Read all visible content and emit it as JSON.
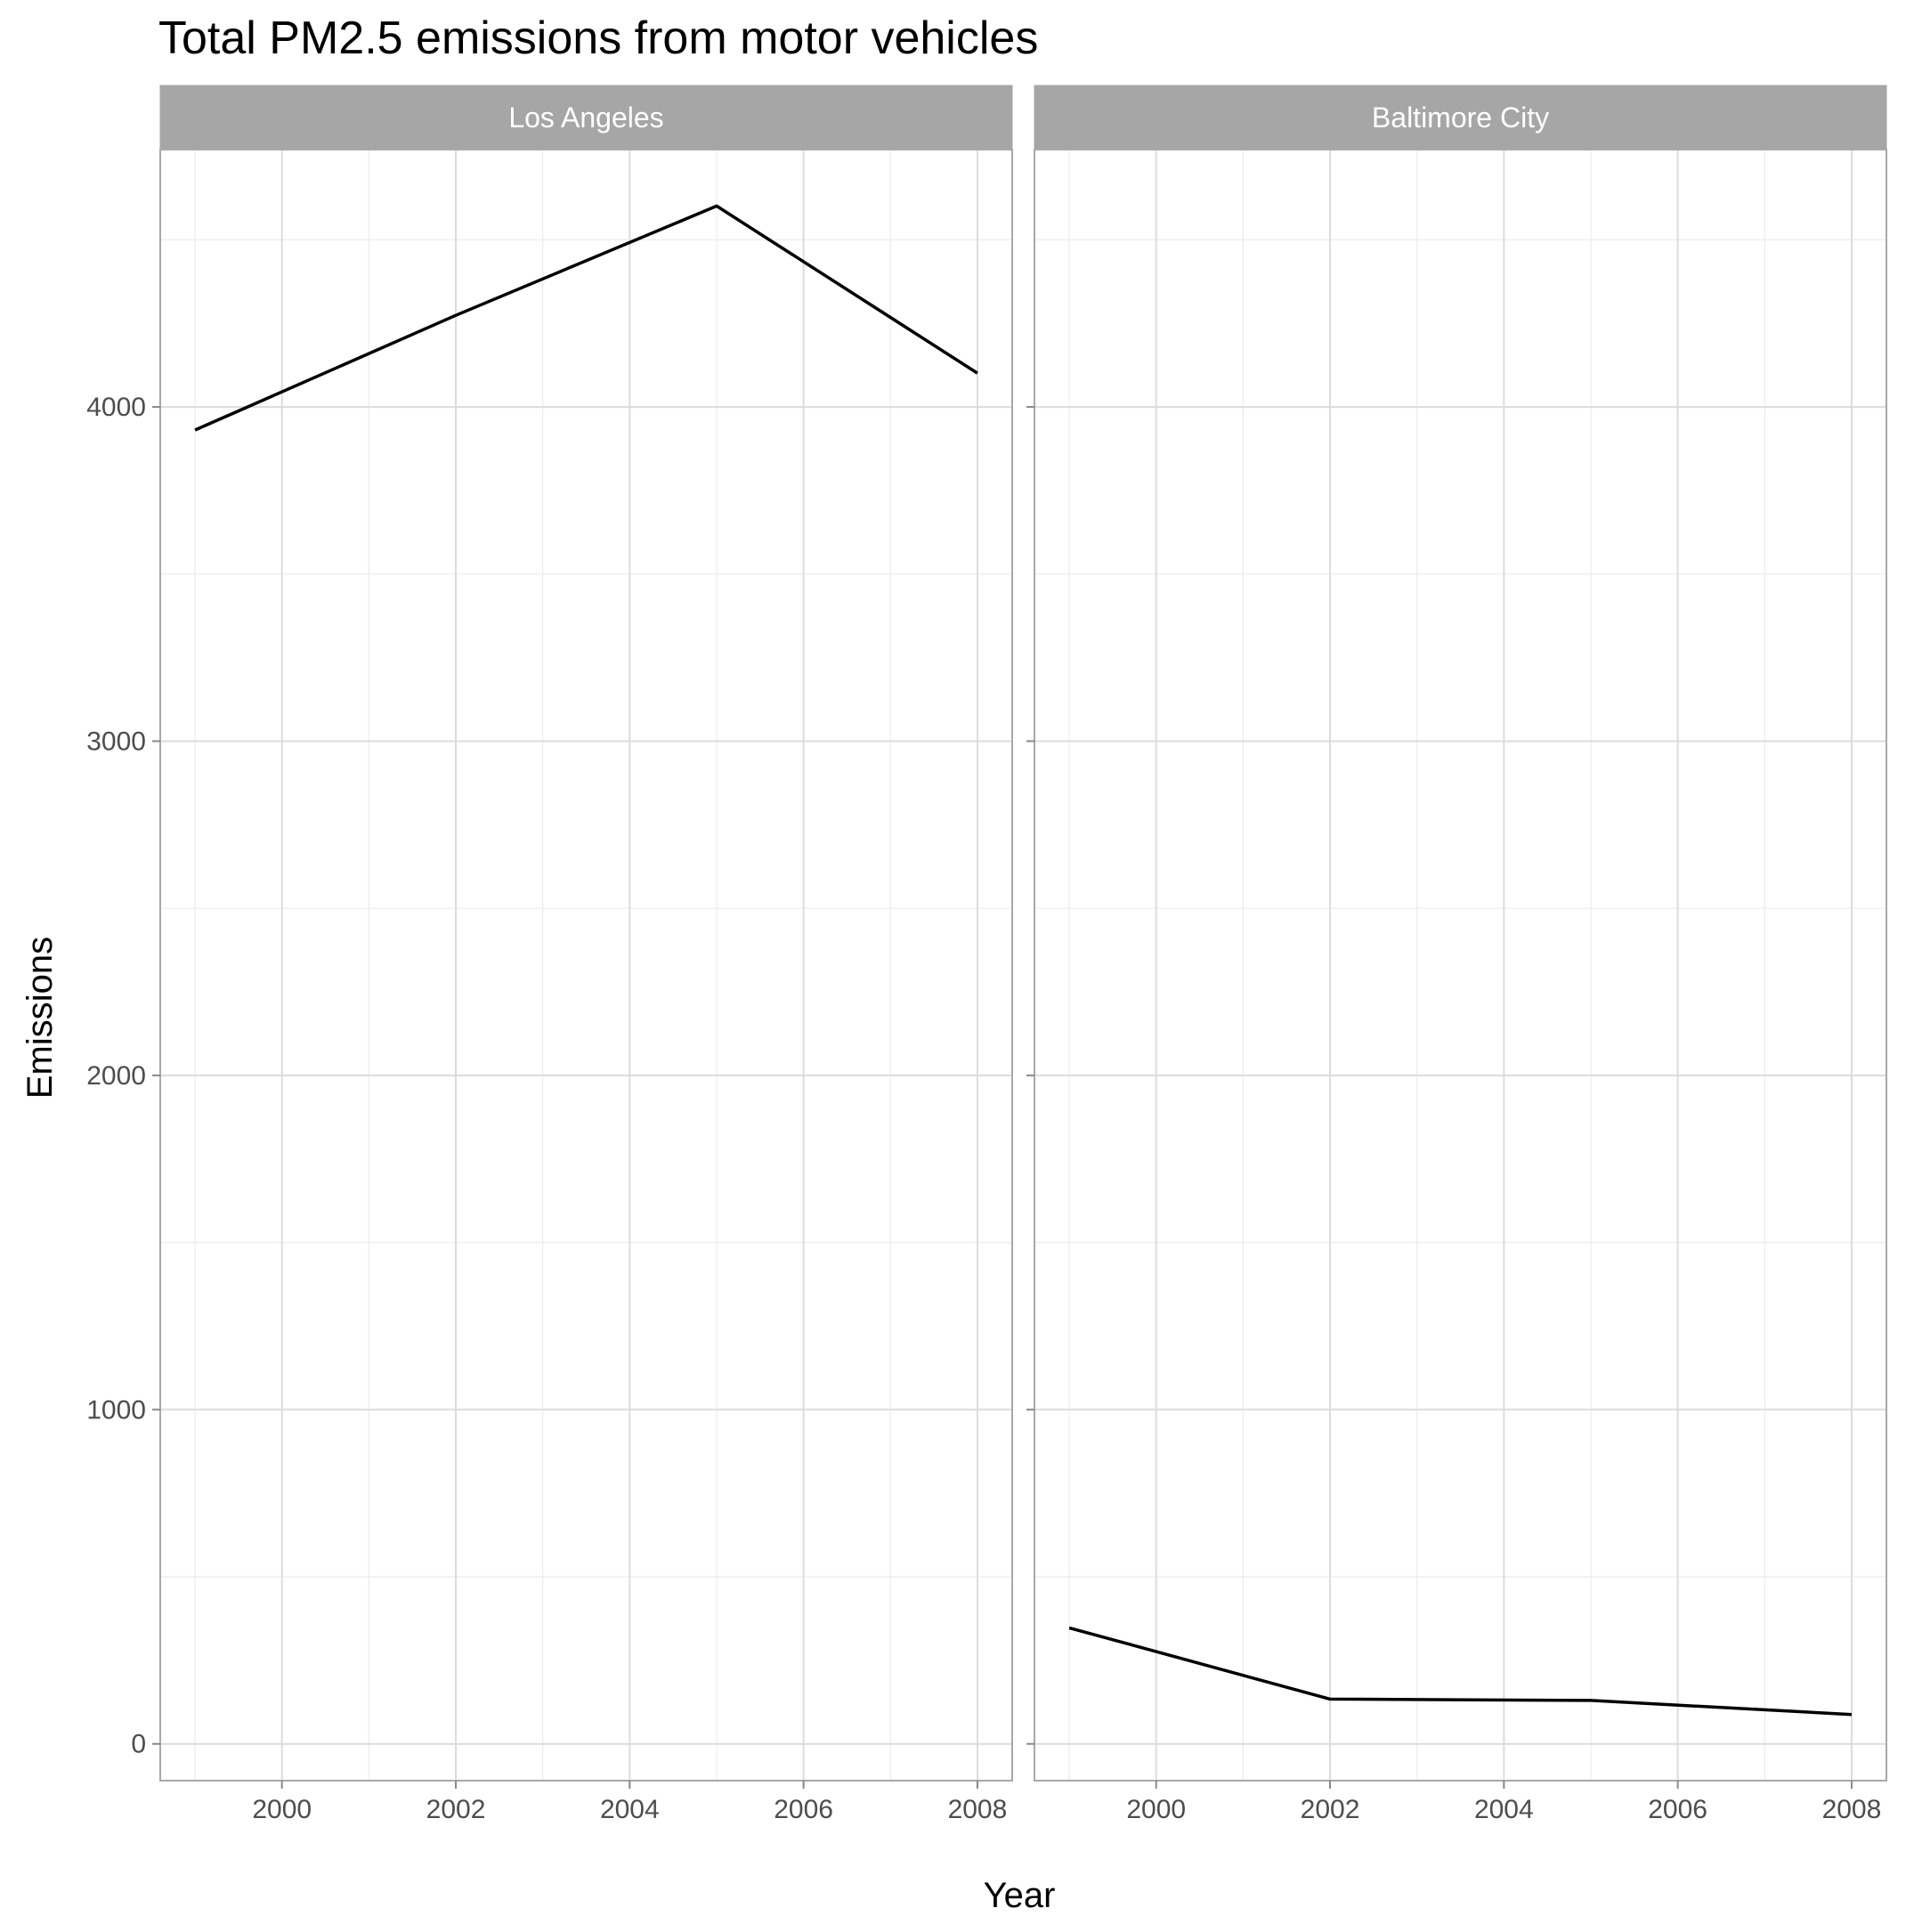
{
  "chart_data": {
    "type": "line",
    "title": "Total PM2.5 emissions from motor vehicles",
    "xlabel": "Year",
    "ylabel": "Emissions",
    "xlim": [
      1998.6,
      2008.4
    ],
    "ylim": [
      -110,
      4770
    ],
    "x_ticks": [
      "2000",
      "2002",
      "2004",
      "2006",
      "2008"
    ],
    "y_ticks": [
      "0",
      "1000",
      "2000",
      "3000",
      "4000"
    ],
    "grid": true,
    "facets": [
      {
        "label": "Los Angeles",
        "x": [
          1999,
          2002,
          2005,
          2008
        ],
        "y": [
          3931,
          4274,
          4601,
          4101
        ]
      },
      {
        "label": "Baltimore City",
        "x": [
          1999,
          2002,
          2005,
          2008
        ],
        "y": [
          347,
          134,
          130,
          88
        ]
      }
    ]
  }
}
